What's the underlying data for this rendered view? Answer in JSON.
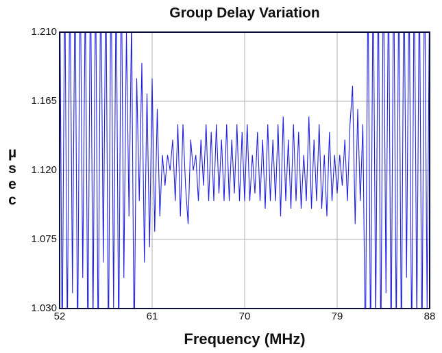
{
  "chart_data": {
    "type": "line",
    "title": "Group Delay Variation",
    "x_label": "Frequency (MHz)",
    "y_label": "µsec",
    "xlim": [
      52,
      88
    ],
    "xticks": [
      52,
      61,
      70,
      79,
      88
    ],
    "ylim": [
      1.03,
      1.21
    ],
    "yticks": [
      {
        "value": 1.21,
        "label": "1.210"
      },
      1.165,
      {
        "value": 1.12,
        "label": "1.120"
      },
      1.075,
      {
        "value": 1.03,
        "label": "1.030"
      }
    ],
    "grid": true,
    "x": [
      52,
      52.25,
      52.5,
      52.75,
      53,
      53.25,
      53.5,
      53.75,
      54,
      54.25,
      54.5,
      54.75,
      55,
      55.25,
      55.5,
      55.75,
      56,
      56.25,
      56.5,
      56.75,
      57,
      57.25,
      57.5,
      57.75,
      58,
      58.25,
      58.5,
      58.75,
      59,
      59.25,
      59.5,
      59.75,
      60,
      60.25,
      60.5,
      60.75,
      61,
      61.25,
      61.5,
      61.75,
      62,
      62.25,
      62.5,
      62.75,
      63,
      63.25,
      63.5,
      63.75,
      64,
      64.25,
      64.5,
      64.75,
      65,
      65.25,
      65.5,
      65.75,
      66,
      66.25,
      66.5,
      66.75,
      67,
      67.25,
      67.5,
      67.75,
      68,
      68.25,
      68.5,
      68.75,
      69,
      69.25,
      69.5,
      69.75,
      70,
      70.25,
      70.5,
      70.75,
      71,
      71.25,
      71.5,
      71.75,
      72,
      72.25,
      72.5,
      72.75,
      73,
      73.25,
      73.5,
      73.75,
      74,
      74.25,
      74.5,
      74.75,
      75,
      75.25,
      75.5,
      75.75,
      76,
      76.25,
      76.5,
      76.75,
      77,
      77.25,
      77.5,
      77.75,
      78,
      78.25,
      78.5,
      78.75,
      79,
      79.25,
      79.5,
      79.75,
      80,
      80.25,
      80.5,
      80.75,
      81,
      81.25,
      81.5,
      81.75,
      82,
      82.25,
      82.5,
      82.75,
      83,
      83.25,
      83.5,
      83.75,
      84,
      84.25,
      84.5,
      84.75,
      85,
      85.25,
      85.5,
      85.75,
      86,
      86.25,
      86.5,
      86.75,
      87,
      87.25,
      87.5,
      87.75,
      88
    ],
    "series": [
      {
        "name": "Group Delay",
        "color": "#1f1fe0",
        "values": [
          1.26,
          1.0,
          1.25,
          1.01,
          1.26,
          1.04,
          1.25,
          1.0,
          1.26,
          1.05,
          1.24,
          1.0,
          1.26,
          1.02,
          1.25,
          1.0,
          1.26,
          1.06,
          1.25,
          1.0,
          1.26,
          1.03,
          1.25,
          1.0,
          1.26,
          1.05,
          1.21,
          1.09,
          1.22,
          1.0,
          1.18,
          1.1,
          1.19,
          1.06,
          1.17,
          1.07,
          1.18,
          1.08,
          1.16,
          1.09,
          1.13,
          1.11,
          1.13,
          1.12,
          1.14,
          1.1,
          1.15,
          1.09,
          1.15,
          1.11,
          1.085,
          1.14,
          1.12,
          1.13,
          1.1,
          1.14,
          1.11,
          1.15,
          1.1,
          1.145,
          1.1,
          1.15,
          1.105,
          1.14,
          1.1,
          1.15,
          1.1,
          1.14,
          1.105,
          1.15,
          1.1,
          1.145,
          1.1,
          1.15,
          1.1,
          1.13,
          1.105,
          1.145,
          1.1,
          1.14,
          1.095,
          1.15,
          1.1,
          1.14,
          1.1,
          1.15,
          1.09,
          1.155,
          1.1,
          1.14,
          1.095,
          1.15,
          1.1,
          1.145,
          1.095,
          1.13,
          1.1,
          1.155,
          1.095,
          1.14,
          1.1,
          1.15,
          1.095,
          1.13,
          1.09,
          1.145,
          1.1,
          1.13,
          1.105,
          1.13,
          1.11,
          1.14,
          1.1,
          1.15,
          1.175,
          1.085,
          1.16,
          1.1,
          1.15,
          1.0,
          1.25,
          1.0,
          1.26,
          1.02,
          1.25,
          1.0,
          1.26,
          1.04,
          1.25,
          1.0,
          1.26,
          1.01,
          1.25,
          1.0,
          1.26,
          1.05,
          1.25,
          1.0,
          1.26,
          1.02,
          1.25,
          1.0,
          1.26,
          1.03,
          1.25
        ]
      }
    ]
  }
}
